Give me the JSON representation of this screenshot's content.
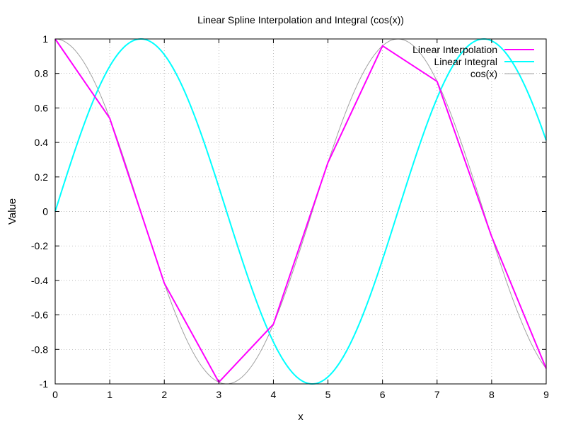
{
  "chart_data": {
    "type": "line",
    "title": "Linear Spline Interpolation and Integral (cos(x))",
    "xlabel": "x",
    "ylabel": "Value",
    "xlim": [
      0,
      9
    ],
    "ylim": [
      -1,
      1
    ],
    "xticks": [
      0,
      1,
      2,
      3,
      4,
      5,
      6,
      7,
      8,
      9
    ],
    "yticks": [
      1,
      0.8,
      0.6,
      0.4,
      0.2,
      0,
      -0.2,
      -0.4,
      -0.6,
      -0.8,
      -1
    ],
    "ytick_labels": [
      "1",
      "0.8",
      "0.6",
      "0.4",
      "0.2",
      "0",
      "-0.2",
      "-0.4",
      "-0.6",
      "-0.8",
      "-1"
    ],
    "grid": true,
    "legend_position": "top-right",
    "series": [
      {
        "name": "Linear Interpolation",
        "color": "#ff00ff",
        "x": [
          0,
          1,
          2,
          3,
          4,
          5,
          6,
          7,
          8,
          9
        ],
        "y": [
          1.0,
          0.5403,
          -0.4161,
          -0.99,
          -0.6536,
          0.2837,
          0.9602,
          0.7539,
          -0.1455,
          -0.9111
        ]
      },
      {
        "name": "Linear Integral",
        "color": "#00ffff",
        "function": "sin(x)",
        "x_range": [
          0,
          9
        ]
      },
      {
        "name": "cos(x)",
        "color": "#a0a0a0",
        "function": "cos(x)",
        "x_range": [
          0,
          9
        ]
      }
    ]
  }
}
